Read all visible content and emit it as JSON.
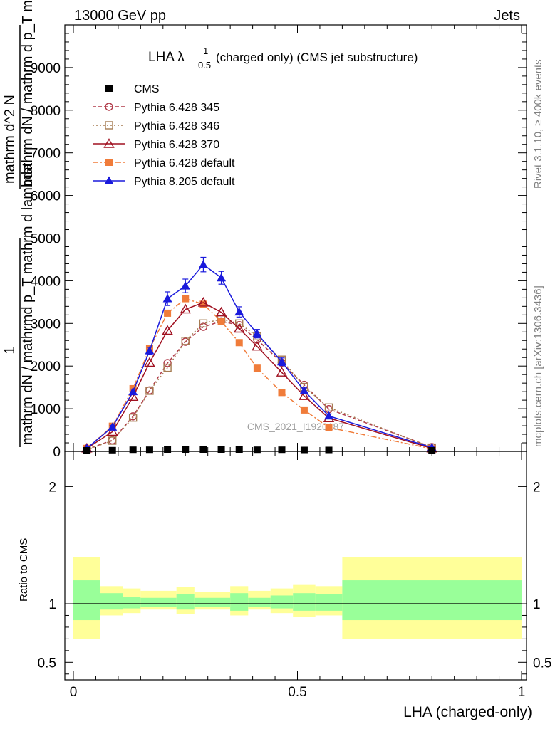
{
  "header": {
    "energy": "13000 GeV pp",
    "process": "Jets",
    "rivet_version": "Rivet 3.1.10, ≥ 400k events",
    "site": "mcplots.cern.ch [arXiv:1306.3436]"
  },
  "chart_data": {
    "type": "line",
    "title": "LHA λ¹₀.₅ (charged only) (CMS jet substructure)",
    "title_main": "LHA λ",
    "title_sup": "1",
    "title_sub": "0.5",
    "title_rest": "(charged only) (CMS jet substructure)",
    "watermark": "CMS_2021_I1920187",
    "xlabel": "LHA (charged-only)",
    "ylabel_fraction_num": "1",
    "ylabel_fraction_den": "mathrm dN / mathrmd p_T mathrm d lambda",
    "ylabel_main": "mathrm dN / mathrm d p_T mathrm d lambda",
    "ylabel_main_top": "mathrm d^2 N",
    "ylabel_ratio": "Ratio to CMS",
    "xlim": [
      -0.02,
      1.0
    ],
    "ylim_main": [
      0,
      10000
    ],
    "ylim_ratio": [
      0.35,
      2.3
    ],
    "x_ticks": [
      {
        "v": 0,
        "label": "0"
      },
      {
        "v": 0.5,
        "label": "0.5"
      },
      {
        "v": 1,
        "label": "1"
      }
    ],
    "y_ticks_main": [
      {
        "v": 0,
        "label": "0"
      },
      {
        "v": 1000,
        "label": "1000"
      },
      {
        "v": 2000,
        "label": "2000"
      },
      {
        "v": 3000,
        "label": "3000"
      },
      {
        "v": 4000,
        "label": "4000"
      },
      {
        "v": 5000,
        "label": "5000"
      },
      {
        "v": 6000,
        "label": "6000"
      },
      {
        "v": 7000,
        "label": "7000"
      },
      {
        "v": 8000,
        "label": "8000"
      },
      {
        "v": 9000,
        "label": "9000"
      }
    ],
    "y_ticks_ratio": [
      {
        "v": 0.5,
        "label": "0.5"
      },
      {
        "v": 1,
        "label": "1"
      },
      {
        "v": 2,
        "label": "2"
      }
    ],
    "x": [
      0.03,
      0.087,
      0.133,
      0.17,
      0.21,
      0.25,
      0.29,
      0.33,
      0.37,
      0.41,
      0.465,
      0.515,
      0.57,
      0.8
    ],
    "bins": [
      [
        0.0,
        0.06
      ],
      [
        0.06,
        0.11
      ],
      [
        0.11,
        0.15
      ],
      [
        0.15,
        0.19
      ],
      [
        0.19,
        0.23
      ],
      [
        0.23,
        0.27
      ],
      [
        0.27,
        0.31
      ],
      [
        0.31,
        0.35
      ],
      [
        0.35,
        0.39
      ],
      [
        0.39,
        0.44
      ],
      [
        0.44,
        0.49
      ],
      [
        0.49,
        0.54
      ],
      [
        0.54,
        0.6
      ],
      [
        0.6,
        1.0
      ]
    ],
    "series": [
      {
        "name": "CMS",
        "color": "#000000",
        "marker": "square-filled",
        "dash": "",
        "line": false,
        "values": [
          10,
          20,
          30,
          30,
          35,
          35,
          35,
          35,
          35,
          30,
          30,
          25,
          25,
          15
        ]
      },
      {
        "name": "Pythia 6.428 345",
        "color": "#b03a48",
        "marker": "circle-open",
        "dash": "5,3",
        "values": [
          50,
          260,
          820,
          1430,
          2070,
          2570,
          2920,
          3050,
          2960,
          2620,
          2080,
          1560,
          990,
          100
        ]
      },
      {
        "name": "Pythia 6.428 346",
        "color": "#a67c52",
        "marker": "square-open",
        "dash": "2,3",
        "values": [
          40,
          250,
          790,
          1420,
          1960,
          2590,
          3000,
          3100,
          3000,
          2700,
          2150,
          1510,
          1030,
          90
        ]
      },
      {
        "name": "Pythia 6.428 370",
        "color": "#a01020",
        "marker": "triangle-open",
        "dash": "",
        "values": [
          70,
          460,
          1280,
          2080,
          2830,
          3330,
          3490,
          3260,
          2880,
          2460,
          1850,
          1300,
          780,
          70
        ]
      },
      {
        "name": "Pythia 6.428 default",
        "color": "#f07c3a",
        "marker": "square-filled",
        "dash": "8,3,2,3",
        "values": [
          70,
          590,
          1470,
          2410,
          3240,
          3580,
          3450,
          3050,
          2550,
          1950,
          1380,
          970,
          560,
          60
        ]
      },
      {
        "name": "Pythia 8.205 default",
        "color": "#1a1adc",
        "marker": "triangle-filled",
        "dash": "",
        "values": [
          70,
          570,
          1400,
          2360,
          3580,
          3880,
          4380,
          4070,
          3270,
          2760,
          2100,
          1420,
          830,
          90
        ],
        "errors": [
          20,
          40,
          60,
          80,
          160,
          160,
          170,
          150,
          120,
          100,
          90,
          70,
          50,
          10
        ]
      }
    ],
    "ratio_bands": {
      "inner_color": "#99ff99",
      "outer_color": "#ffff99",
      "inner": [
        [
          0.86,
          1.2
        ],
        [
          0.95,
          1.09
        ],
        [
          0.96,
          1.06
        ],
        [
          0.97,
          1.05
        ],
        [
          0.97,
          1.05
        ],
        [
          0.95,
          1.08
        ],
        [
          0.97,
          1.05
        ],
        [
          0.97,
          1.05
        ],
        [
          0.94,
          1.09
        ],
        [
          0.97,
          1.05
        ],
        [
          0.96,
          1.07
        ],
        [
          0.94,
          1.09
        ],
        [
          0.94,
          1.08
        ],
        [
          0.86,
          1.2
        ]
      ],
      "outer": [
        [
          0.7,
          1.4
        ],
        [
          0.9,
          1.15
        ],
        [
          0.92,
          1.13
        ],
        [
          0.95,
          1.11
        ],
        [
          0.95,
          1.11
        ],
        [
          0.91,
          1.14
        ],
        [
          0.95,
          1.1
        ],
        [
          0.95,
          1.1
        ],
        [
          0.9,
          1.15
        ],
        [
          0.95,
          1.11
        ],
        [
          0.92,
          1.13
        ],
        [
          0.89,
          1.16
        ],
        [
          0.9,
          1.15
        ],
        [
          0.7,
          1.4
        ]
      ]
    }
  }
}
